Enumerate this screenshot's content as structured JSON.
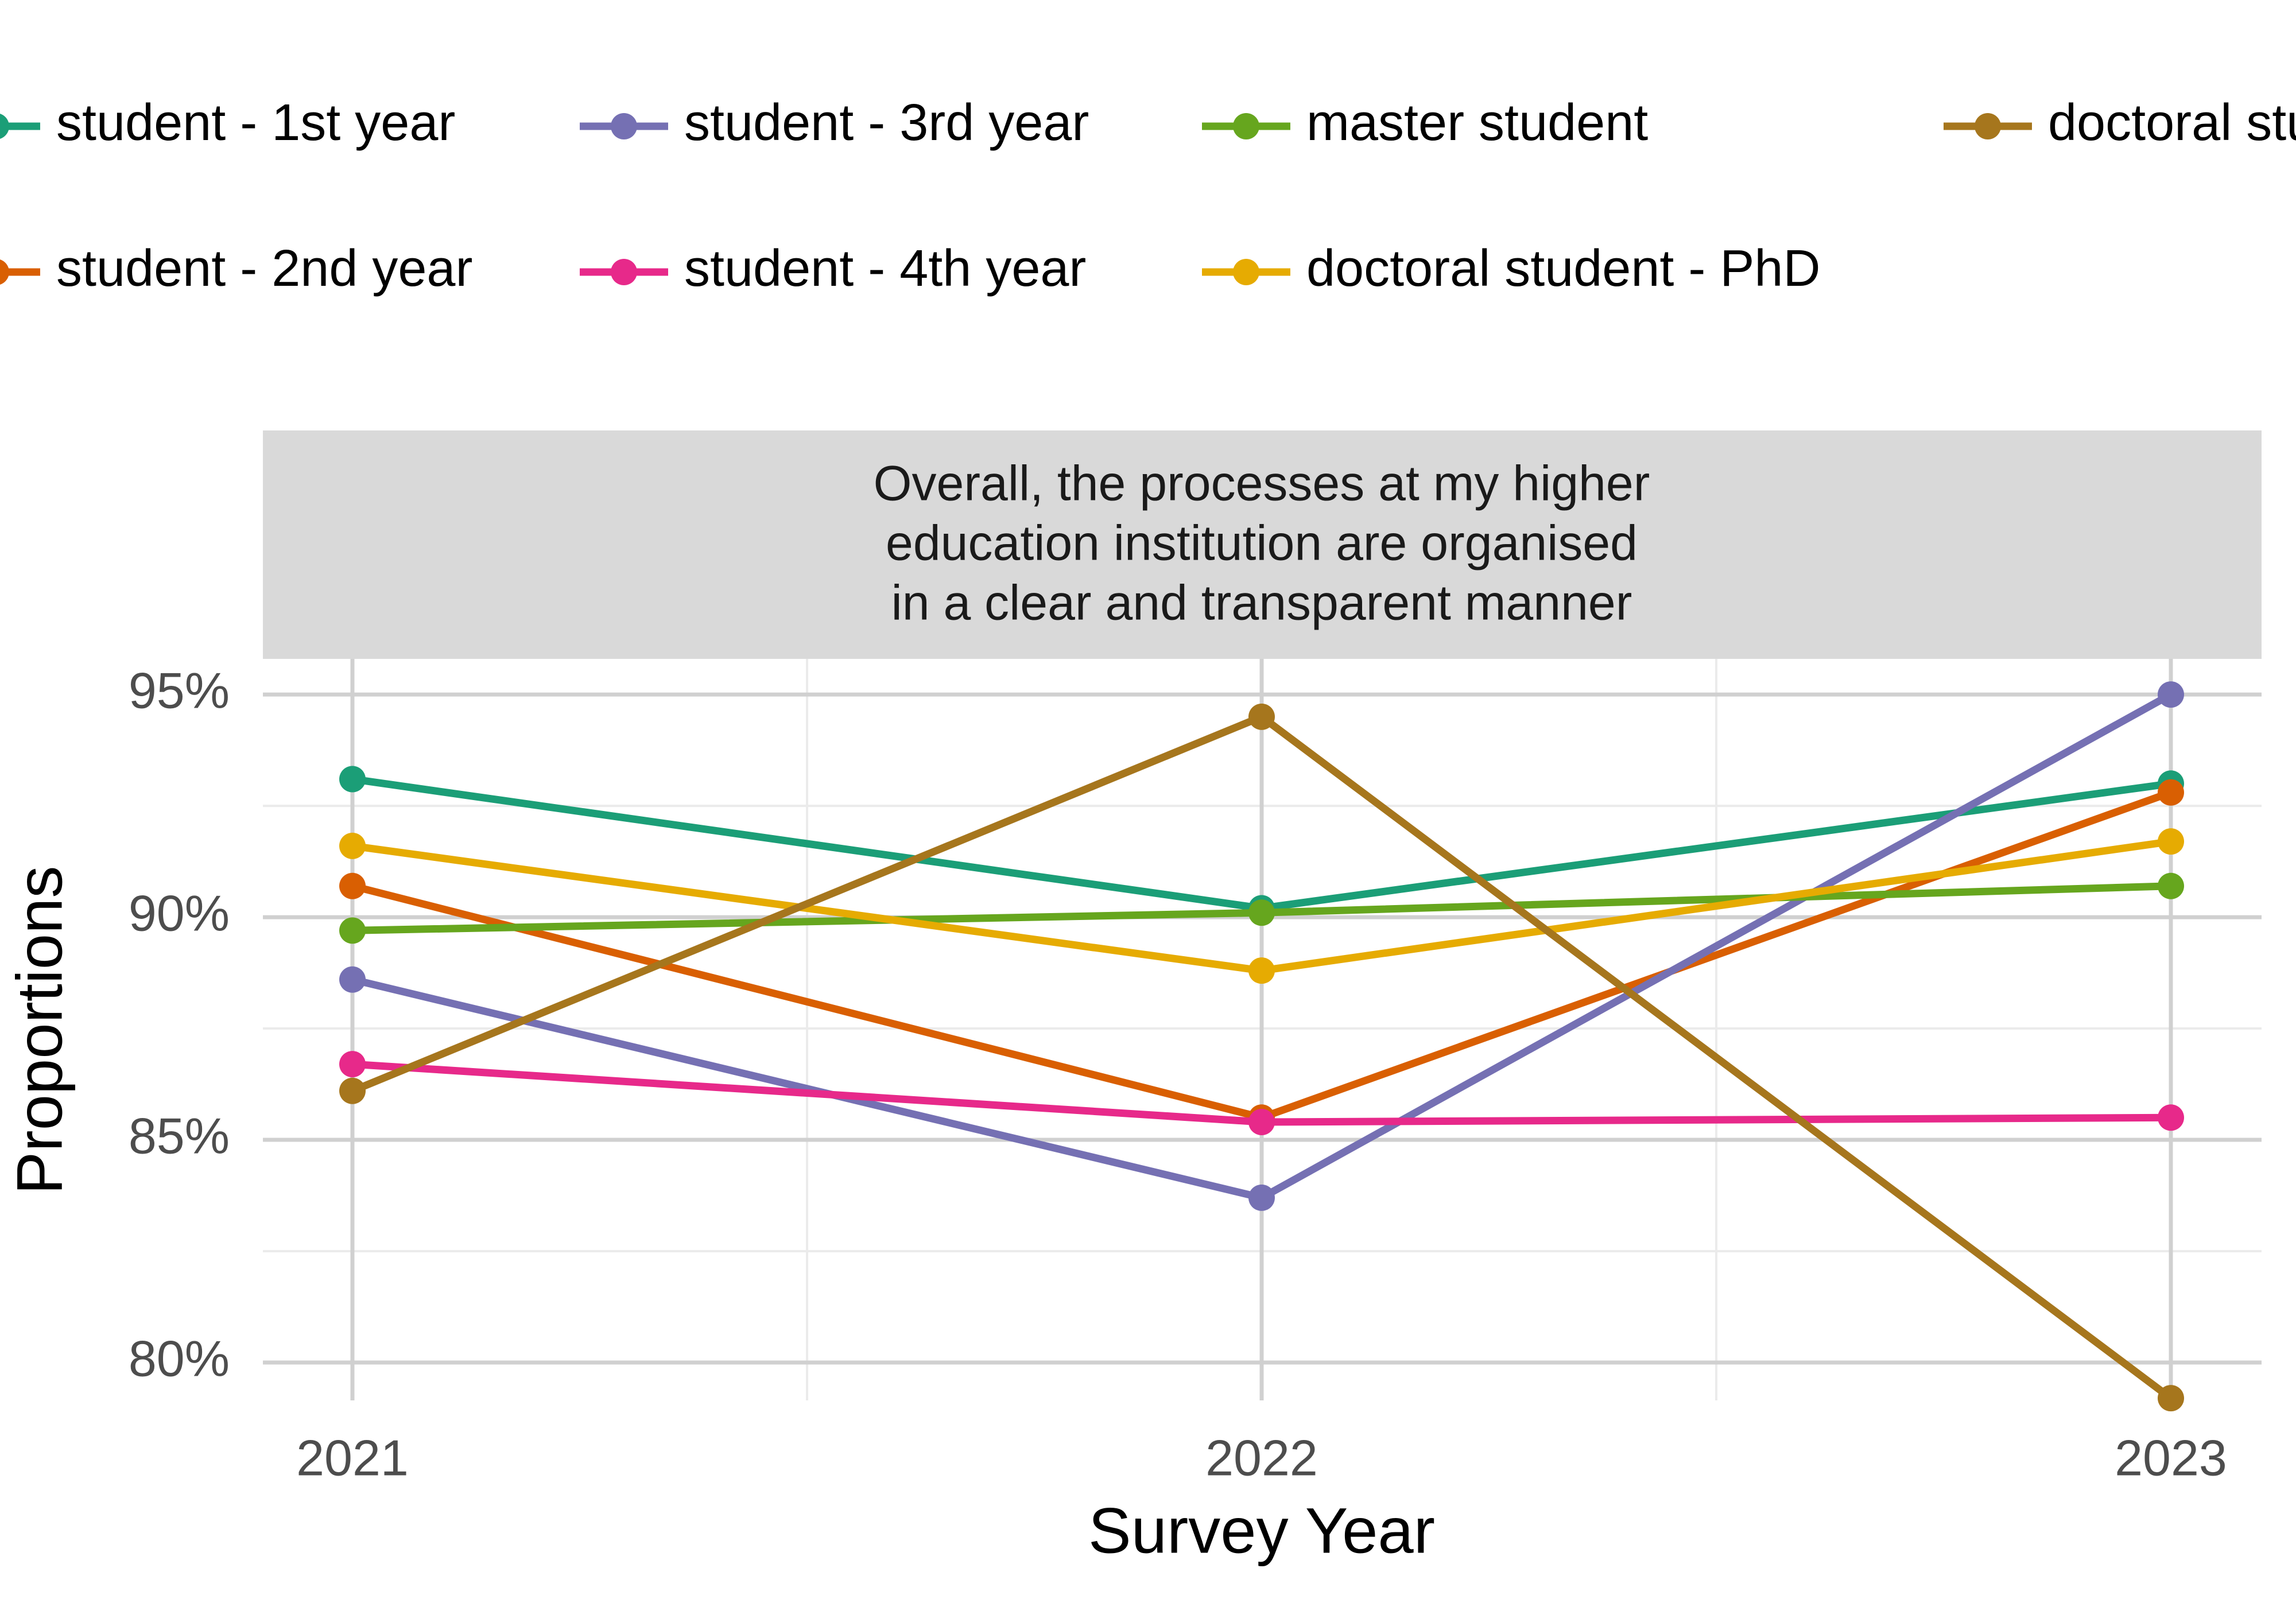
{
  "chart_data": {
    "type": "line",
    "panel_title": [
      "Overall, the processes at my higher",
      "education institution are organised",
      "in a clear and transparent manner"
    ],
    "xlabel": "Survey Year",
    "ylabel": "Proportions",
    "categories": [
      "2021",
      "2022",
      "2023"
    ],
    "y_ticks": [
      0.8,
      0.85,
      0.9,
      0.95
    ],
    "y_tick_labels": [
      "80%",
      "85%",
      "90%",
      "95%"
    ],
    "ylim": [
      0.7915,
      0.958
    ],
    "grid": true,
    "legend_position": "top",
    "series": [
      {
        "name": "student - 1st year",
        "color": "#1B9E77",
        "values": [
          0.931,
          0.902,
          0.93
        ]
      },
      {
        "name": "student - 2nd year",
        "color": "#D95F02",
        "values": [
          0.907,
          0.855,
          0.928
        ]
      },
      {
        "name": "student - 3rd year",
        "color": "#7570B3",
        "values": [
          0.886,
          0.837,
          0.95
        ]
      },
      {
        "name": "student - 4th year",
        "color": "#E7298A",
        "values": [
          0.867,
          0.854,
          0.855
        ]
      },
      {
        "name": "master student",
        "color": "#66A61E",
        "values": [
          0.897,
          0.901,
          0.907
        ]
      },
      {
        "name": "doctoral student - PhD",
        "color": "#E6AB02",
        "values": [
          0.916,
          0.888,
          0.917
        ]
      },
      {
        "name": "doctoral student - Doctor of Medicine",
        "color": "#A6761D",
        "values": [
          0.861,
          0.945,
          0.792
        ]
      }
    ]
  }
}
